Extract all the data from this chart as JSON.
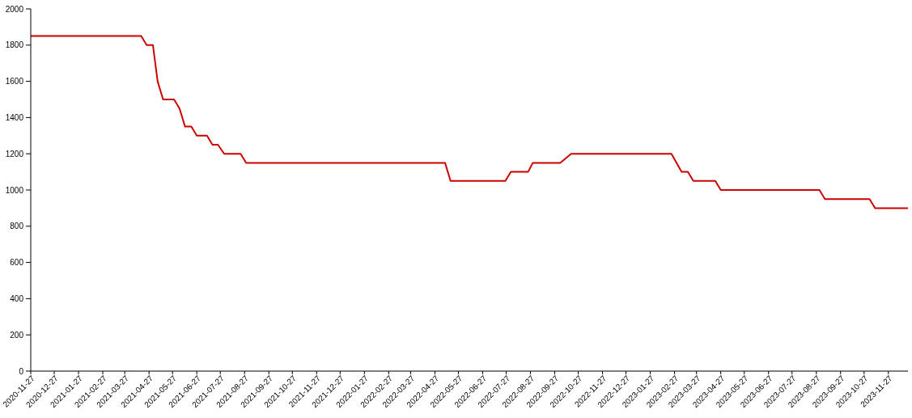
{
  "chart_data": {
    "type": "line",
    "x": [
      "2020-11-27",
      "2021-04-17",
      "2021-04-24",
      "2021-05-02",
      "2021-05-08",
      "2021-05-15",
      "2021-05-29",
      "2021-06-05",
      "2021-06-12",
      "2021-06-20",
      "2021-06-27",
      "2021-07-10",
      "2021-07-17",
      "2021-07-24",
      "2021-08-01",
      "2021-08-22",
      "2021-08-29",
      "2022-05-10",
      "2022-05-17",
      "2022-07-26",
      "2022-08-02",
      "2022-08-24",
      "2022-08-30",
      "2022-10-04",
      "2022-10-18",
      "2023-02-23",
      "2023-03-08",
      "2023-03-16",
      "2023-03-23",
      "2023-04-20",
      "2023-04-27",
      "2023-08-31",
      "2023-09-07",
      "2023-11-03",
      "2023-11-10",
      "2023-12-22"
    ],
    "series": [
      {
        "color": "#cc0000",
        "values": [
          1850,
          1850,
          1800,
          1800,
          1600,
          1500,
          1500,
          1450,
          1350,
          1350,
          1300,
          1300,
          1250,
          1250,
          1200,
          1200,
          1150,
          1150,
          1050,
          1050,
          1100,
          1100,
          1150,
          1150,
          1200,
          1200,
          1100,
          1100,
          1050,
          1050,
          1000,
          1000,
          950,
          950,
          900,
          900
        ]
      }
    ],
    "xlim": [
      "2020-11-27",
      "2023-12-22"
    ],
    "xticks": [
      "2020-11-27",
      "2020-12-27",
      "2021-01-27",
      "2021-02-27",
      "2021-03-27",
      "2021-04-27",
      "2021-05-27",
      "2021-06-27",
      "2021-07-27",
      "2021-08-27",
      "2021-09-27",
      "2021-10-27",
      "2021-11-27",
      "2021-12-27",
      "2022-01-27",
      "2022-02-27",
      "2022-03-27",
      "2022-04-27",
      "2022-05-27",
      "2022-06-27",
      "2022-07-27",
      "2022-08-27",
      "2022-09-27",
      "2022-10-27",
      "2022-11-27",
      "2022-12-27",
      "2023-01-27",
      "2023-02-27",
      "2023-03-27",
      "2023-04-27",
      "2023-05-27",
      "2023-06-27",
      "2023-07-27",
      "2023-08-27",
      "2023-09-27",
      "2023-10-27",
      "2023-11-27"
    ],
    "ylim": [
      0,
      2000
    ],
    "yticks": [
      0,
      200,
      400,
      600,
      800,
      1000,
      1200,
      1400,
      1600,
      1800,
      2000
    ]
  }
}
